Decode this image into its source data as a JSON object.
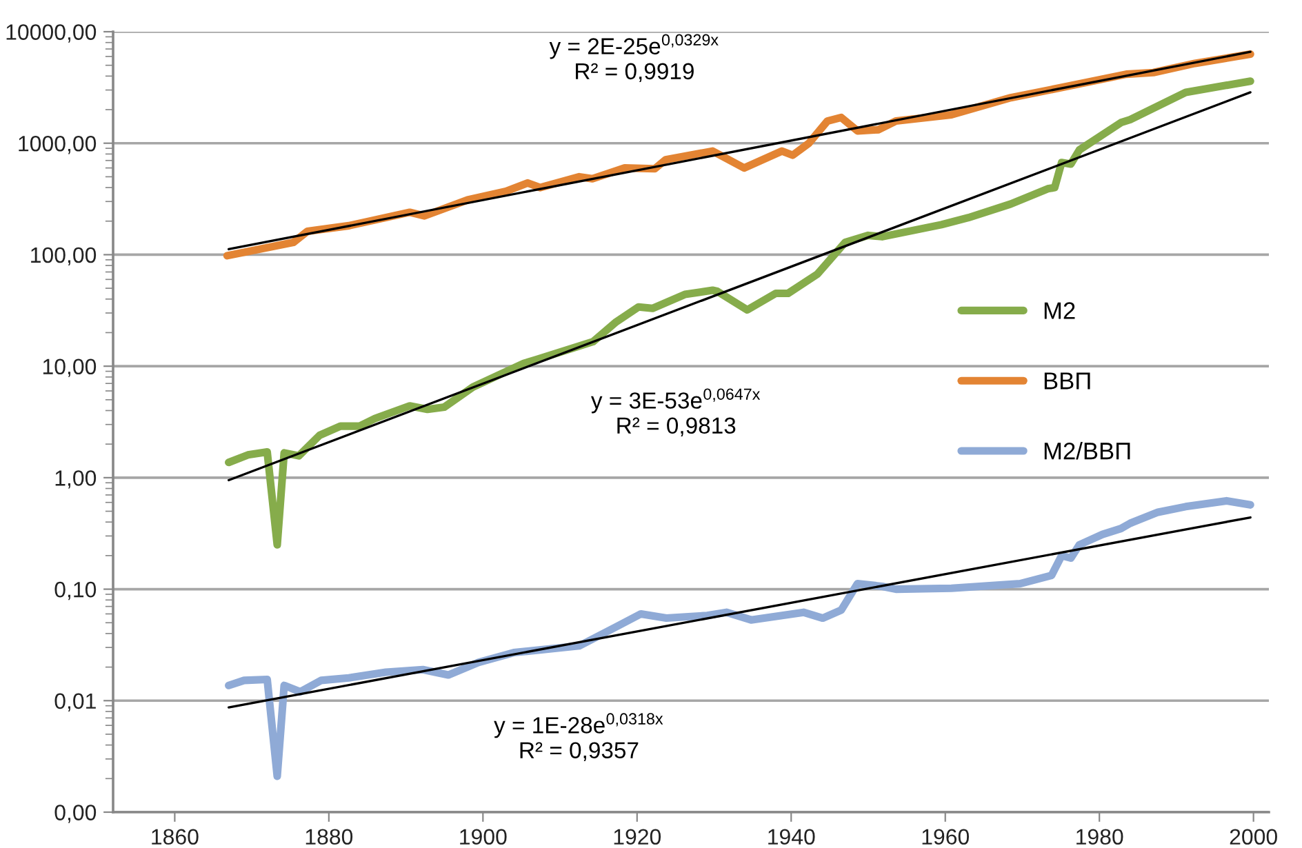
{
  "chart_data": {
    "type": "line",
    "log": "y",
    "grid": "y",
    "legend": "right",
    "marker": "none",
    "line_style": "solid",
    "xlim": [
      1852,
      2002
    ],
    "xticks": [
      1860,
      1880,
      1900,
      1920,
      1940,
      1960,
      1980,
      2000
    ],
    "ylim": [
      0.001,
      10000
    ],
    "yticks": [
      {
        "value": 0.001,
        "label": "0,00"
      },
      {
        "value": 0.01,
        "label": "0,01"
      },
      {
        "value": 0.1,
        "label": "0,10"
      },
      {
        "value": 1,
        "label": "1,00"
      },
      {
        "value": 10,
        "label": "10,00"
      },
      {
        "value": 100,
        "label": "100,00"
      },
      {
        "value": 1000,
        "label": "1000,00"
      },
      {
        "value": 10000,
        "label": "10000,00"
      }
    ],
    "series": [
      {
        "name": "М2",
        "color": "#86ac4b",
        "x": [
          1867,
          1869.5,
          1872,
          1873.3,
          1874.2,
          1876.1,
          1878.8,
          1881.5,
          1884,
          1886,
          1890.5,
          1892.8,
          1895,
          1898.7,
          1905.3,
          1907,
          1914.3,
          1917.3,
          1920.2,
          1922,
          1926.2,
          1929.8,
          1930.4,
          1934.3,
          1938,
          1939.6,
          1943.4,
          1947,
          1950,
          1951.8,
          1959.5,
          1963,
          1968.5,
          1973.3,
          1974.2,
          1975.1,
          1976.3,
          1977.4,
          1982.8,
          1984,
          1991.2,
          1999.6
        ],
        "values": [
          1.37,
          1.6,
          1.7,
          0.25,
          1.67,
          1.57,
          2.4,
          2.9,
          2.9,
          3.4,
          4.4,
          4.1,
          4.3,
          6.5,
          10.6,
          11.5,
          16.6,
          25,
          34,
          33,
          44,
          48,
          47,
          32,
          45,
          45,
          67,
          129,
          149,
          145,
          186,
          215,
          285,
          390,
          400,
          670,
          650,
          870,
          1530,
          1630,
          2860,
          3600
        ]
      },
      {
        "name": "ВВП",
        "color": "#e38433",
        "x": [
          1866.8,
          1875.4,
          1877.2,
          1882.6,
          1890.5,
          1892.4,
          1898,
          1903,
          1905.8,
          1907.4,
          1912.5,
          1914.2,
          1918.4,
          1922.3,
          1923.7,
          1929.8,
          1933.9,
          1938.8,
          1940.2,
          1942.3,
          1944.7,
          1946.5,
          1948.6,
          1951.3,
          1953.6,
          1960.8,
          1968.5,
          1974.5,
          1983.5,
          1987,
          1992.4,
          1999.6
        ],
        "values": [
          98,
          129,
          162,
          182,
          240,
          223,
          310,
          370,
          440,
          400,
          500,
          480,
          600,
          590,
          710,
          850,
          600,
          850,
          780,
          1000,
          1580,
          1700,
          1290,
          1320,
          1580,
          1800,
          2560,
          3100,
          4160,
          4300,
          5200,
          6300
        ]
      },
      {
        "name": "М2/ВВП",
        "color": "#8faad6",
        "x": [
          1867,
          1869,
          1872,
          1873.3,
          1874.2,
          1876.3,
          1879,
          1882.6,
          1887.4,
          1892.2,
          1895.5,
          1899.4,
          1904,
          1912.5,
          1917.3,
          1920.5,
          1923.8,
          1929.1,
          1931.6,
          1934.8,
          1941.6,
          1944.1,
          1946.5,
          1948.6,
          1951.8,
          1953.6,
          1960.8,
          1969.7,
          1973.8,
          1975.1,
          1976.3,
          1977.4,
          1980.4,
          1982.8,
          1984,
          1987.6,
          1991.2,
          1996.5,
          1999.6
        ],
        "values": [
          0.0137,
          0.0152,
          0.0155,
          0.0021,
          0.0137,
          0.012,
          0.0152,
          0.016,
          0.018,
          0.019,
          0.017,
          0.022,
          0.027,
          0.031,
          0.046,
          0.06,
          0.055,
          0.058,
          0.062,
          0.053,
          0.062,
          0.055,
          0.065,
          0.112,
          0.106,
          0.1,
          0.102,
          0.112,
          0.133,
          0.2,
          0.19,
          0.25,
          0.31,
          0.35,
          0.39,
          0.49,
          0.55,
          0.62,
          0.57
        ]
      },
      {
        "color": "#000000",
        "x": [
          1867,
          1999.6
        ],
        "values": [
          112,
          6600
        ]
      },
      {
        "color": "#000000",
        "x": [
          1867,
          1999.6
        ],
        "values": [
          0.95,
          2860
        ]
      },
      {
        "color": "#000000",
        "x": [
          1867,
          1999.6
        ],
        "values": [
          0.0087,
          0.44
        ]
      }
    ],
    "annotations": [
      "y = 2E-25e$^{0,0329x}$\nR² = 0,9919",
      "y = 3E-53e$^{0,0647x}$\nR² = 0,9813",
      "y = 1E-28e$^{0,0318x}$\nR² = 0,9357"
    ]
  }
}
